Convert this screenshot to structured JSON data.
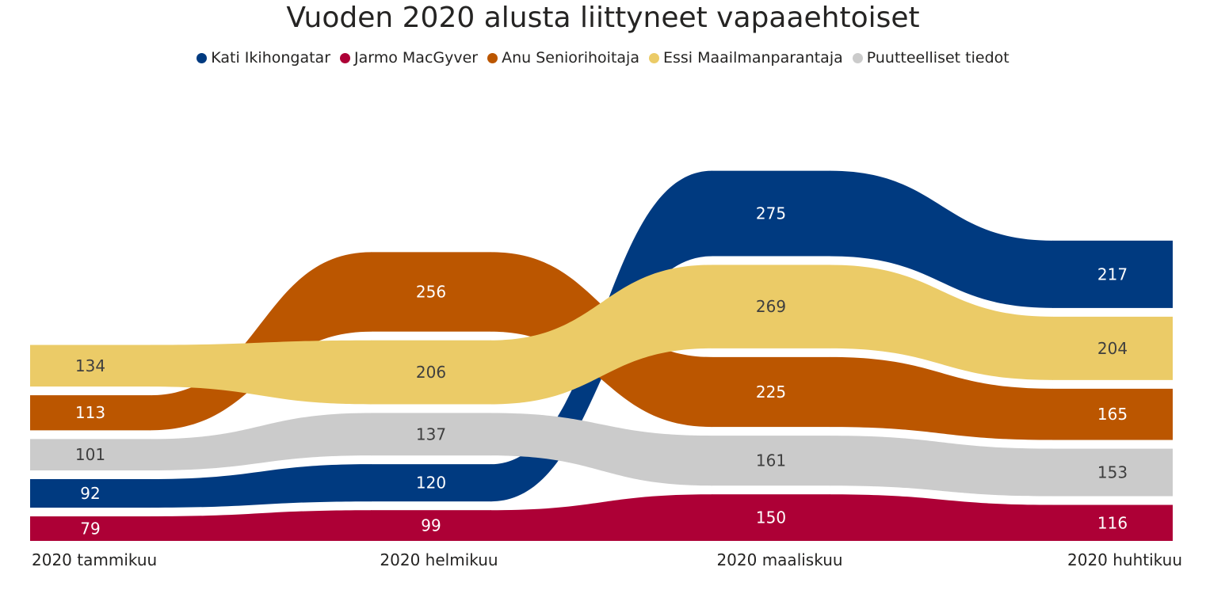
{
  "chart_data": {
    "type": "area",
    "subtype": "ribbon",
    "title": "Vuoden 2020 alusta liittyneet vapaaehtoiset",
    "categories": [
      "2020 tammikuu",
      "2020 helmikuu",
      "2020 maaliskuu",
      "2020 huhtikuu"
    ],
    "series": [
      {
        "name": "Kati Ikihongatar",
        "color": "#003a80",
        "label_color": "#ffffff",
        "values": [
          92,
          120,
          275,
          217
        ]
      },
      {
        "name": "Jarmo MacGyver",
        "color": "#ad0036",
        "label_color": "#ffffff",
        "values": [
          79,
          99,
          150,
          116
        ]
      },
      {
        "name": "Anu Seniorihoitaja",
        "color": "#bb5600",
        "label_color": "#ffffff",
        "values": [
          113,
          256,
          225,
          165
        ]
      },
      {
        "name": "Essi Maailmanparantaja",
        "color": "#ebcb67",
        "label_color": "#3f3f3f",
        "values": [
          134,
          206,
          269,
          204
        ]
      },
      {
        "name": "Puutteelliset tiedot",
        "color": "#cbcbcb",
        "label_color": "#3f3f3f",
        "values": [
          101,
          137,
          161,
          153
        ]
      }
    ],
    "legend_position": "top-center",
    "grid": false,
    "sort": "largest value on top in each category"
  }
}
